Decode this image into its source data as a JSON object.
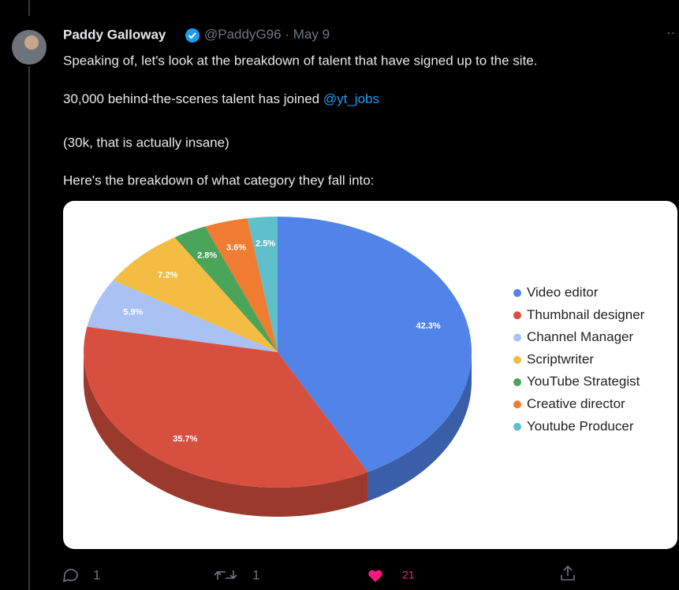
{
  "tweet": {
    "author": "Paddy Galloway",
    "handle": "@PaddyG96",
    "separator": "·",
    "date": "May 9",
    "lines": [
      "Speaking of, let's look at the breakdown of talent that have signed up to the site.",
      "30,000 behind-the-scenes talent has joined ",
      "(30k, that is actually insane)",
      "Here's the breakdown of what category they fall into:"
    ],
    "mention": "@yt_jobs",
    "replies": 1,
    "retweets": 1,
    "likes": 21
  },
  "chart_data": {
    "type": "pie",
    "categories": [
      "Video editor",
      "Thumbnail designer",
      "Channel Manager",
      "Scriptwriter",
      "YouTube Strategist",
      "Creative director",
      "Youtube Producer"
    ],
    "values": [
      42.3,
      35.7,
      5.9,
      7.2,
      2.8,
      3.6,
      2.5
    ],
    "value_labels": [
      "42.3%",
      "35.7%",
      "5.9%",
      "7.2%",
      "2.8%",
      "3.6%",
      "2.5%"
    ],
    "colors": [
      "#5183e8",
      "#d7503f",
      "#a9c1f3",
      "#f2bd42",
      "#4aa45a",
      "#ef7c30",
      "#5fbfca"
    ],
    "legend": "right"
  }
}
